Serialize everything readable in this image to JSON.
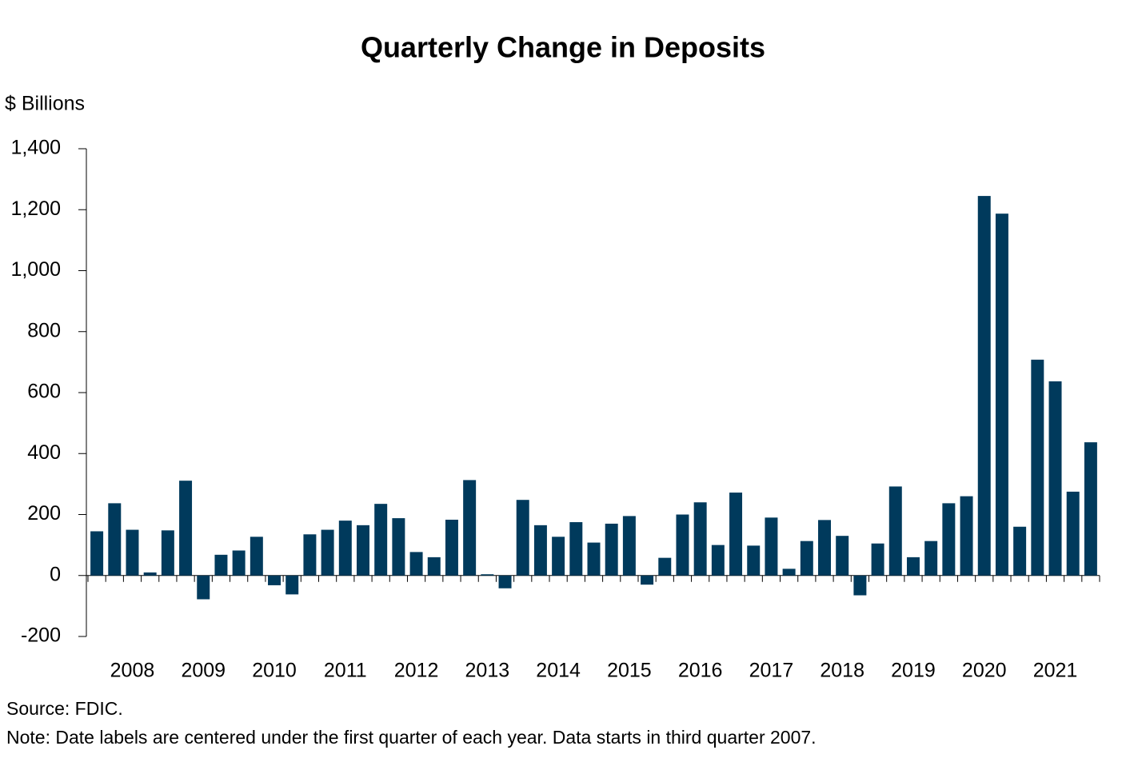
{
  "chart_data": {
    "type": "bar",
    "title": "Quarterly Change in Deposits",
    "y_label": "$ Billions",
    "source": "Source: FDIC.",
    "note": "Note: Date labels are centered under the first quarter of each year. Data starts in third quarter 2007.",
    "categories": [
      null,
      null,
      "2008",
      null,
      null,
      null,
      "2009",
      null,
      null,
      null,
      "2010",
      null,
      null,
      null,
      "2011",
      null,
      null,
      null,
      "2012",
      null,
      null,
      null,
      "2013",
      null,
      null,
      null,
      "2014",
      null,
      null,
      null,
      "2015",
      null,
      null,
      null,
      "2016",
      null,
      null,
      null,
      "2017",
      null,
      null,
      null,
      "2018",
      null,
      null,
      null,
      "2019",
      null,
      null,
      null,
      "2020",
      null,
      null,
      null,
      "2021",
      null,
      null
    ],
    "values": [
      145,
      237,
      150,
      10,
      148,
      311,
      -78,
      68,
      82,
      127,
      -32,
      -62,
      135,
      150,
      180,
      165,
      235,
      188,
      77,
      60,
      183,
      313,
      4,
      -42,
      248,
      165,
      127,
      175,
      108,
      170,
      195,
      -30,
      58,
      200,
      240,
      100,
      272,
      98,
      190,
      22,
      113,
      182,
      130,
      -65,
      105,
      292,
      60,
      113,
      237,
      260,
      1245,
      1187,
      160,
      708,
      637,
      275,
      437
    ],
    "color": "#003a5c",
    "ylim": [
      -200,
      1400
    ],
    "yticks": [
      -200,
      0,
      200,
      400,
      600,
      800,
      {
        "value": 1000,
        "label": "1,000"
      },
      {
        "value": 1200,
        "label": "1,200"
      },
      {
        "value": 1400,
        "label": "1,400"
      }
    ],
    "grid": false
  }
}
